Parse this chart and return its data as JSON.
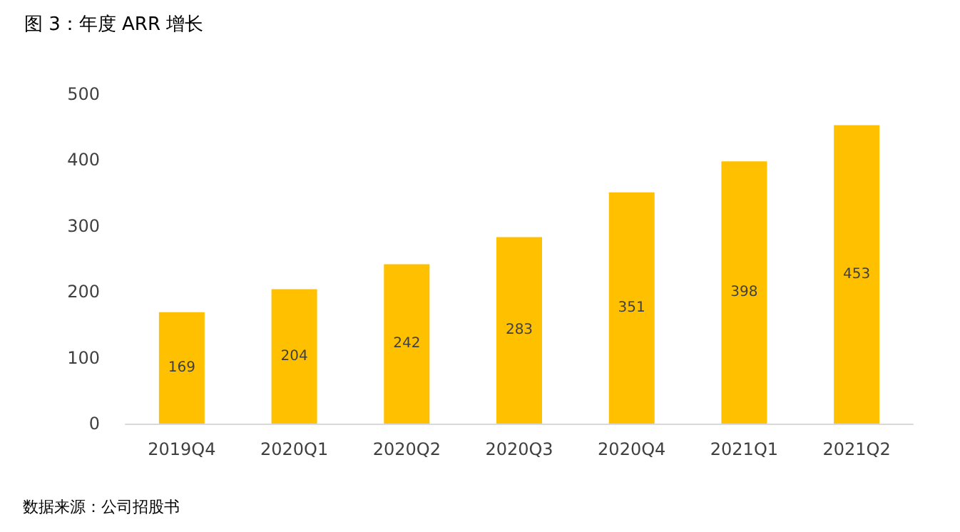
{
  "chart_data": {
    "type": "bar",
    "title": "图 3：年度 ARR 增长",
    "categories": [
      "2019Q4",
      "2020Q1",
      "2020Q2",
      "2020Q3",
      "2020Q4",
      "2021Q1",
      "2021Q2"
    ],
    "values": [
      169,
      204,
      242,
      283,
      351,
      398,
      453
    ],
    "color": "#ffc000",
    "ylim": [
      0,
      500
    ],
    "yticks": [
      0,
      100,
      200,
      300,
      400,
      500
    ],
    "grid": false,
    "data_labels": true,
    "annotations": [
      "数据来源：公司招股书"
    ]
  }
}
